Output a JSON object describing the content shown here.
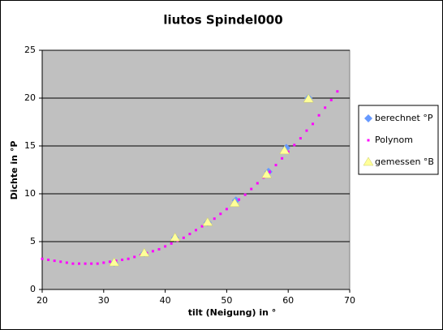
{
  "chart_data": {
    "type": "scatter",
    "title": "liutos Spindel000",
    "x_label": "tilt (Neigung) in °",
    "y_label": "Dichte in °P",
    "xlim": [
      20,
      70
    ],
    "xticks": [
      20,
      30,
      40,
      50,
      60,
      70
    ],
    "ylim": [
      0,
      25
    ],
    "yticks": [
      0,
      5,
      10,
      15,
      20,
      25
    ],
    "grid": true,
    "legend": "right",
    "series": [
      {
        "name": "berechnet °P",
        "color": "#6699ff",
        "marker": "diamond",
        "x": [
          31.7,
          36.6,
          41.6,
          46.9,
          51.5,
          56.8,
          59.7,
          63.3
        ],
        "values": [
          2.8,
          3.8,
          5.4,
          7.0,
          9.3,
          12.3,
          14.8,
          20.0
        ]
      },
      {
        "name": "Polynom",
        "color": "#ff00ff",
        "marker": "square",
        "x": [
          20,
          21,
          22,
          23,
          24,
          25,
          26,
          27,
          28,
          29,
          30,
          31,
          32,
          33,
          34,
          35,
          36,
          37,
          38,
          39,
          40,
          41,
          42,
          43,
          44,
          45,
          46,
          47,
          48,
          49,
          50,
          51,
          52,
          53,
          54,
          55,
          56,
          57,
          58,
          59,
          60,
          61,
          62,
          63,
          64,
          65,
          66,
          67,
          68
        ],
        "values": [
          3.2,
          3.1,
          3.0,
          2.9,
          2.8,
          2.7,
          2.7,
          2.7,
          2.7,
          2.7,
          2.8,
          2.9,
          3.0,
          3.1,
          3.2,
          3.4,
          3.6,
          3.8,
          4.0,
          4.2,
          4.5,
          4.8,
          5.1,
          5.4,
          5.8,
          6.2,
          6.6,
          7.0,
          7.4,
          7.9,
          8.4,
          8.9,
          9.4,
          9.9,
          10.5,
          11.1,
          11.7,
          12.3,
          13.0,
          13.7,
          14.4,
          15.1,
          15.8,
          16.6,
          17.3,
          18.2,
          19.0,
          19.8,
          20.7
        ]
      },
      {
        "name": "gemessen °B",
        "color": "#ffff99",
        "marker": "triangle",
        "x": [
          31.7,
          36.6,
          41.6,
          46.9,
          51.3,
          56.5,
          59.4,
          63.3
        ],
        "values": [
          2.8,
          3.8,
          5.4,
          7.0,
          9.0,
          12.0,
          14.5,
          19.9
        ]
      }
    ]
  }
}
